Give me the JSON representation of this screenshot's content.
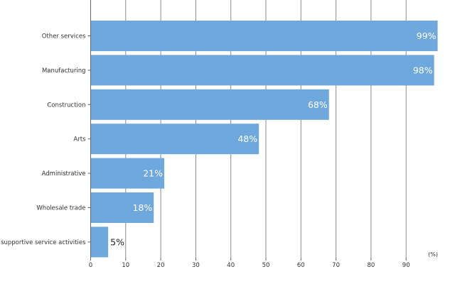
{
  "chart_data": {
    "type": "bar",
    "orientation": "horizontal",
    "categories": [
      "Other services",
      "Manufacturing",
      "Construction",
      "Arts",
      "Administrative",
      "Wholesale trade",
      "d supportive service activities"
    ],
    "values": [
      99,
      98,
      68,
      48,
      21,
      18,
      5
    ],
    "data_labels": [
      "99%",
      "98%",
      "68%",
      "48%",
      "21%",
      "18%",
      "5%"
    ],
    "xticks": [
      0,
      10,
      20,
      30,
      40,
      50,
      60,
      70,
      80,
      90
    ],
    "xlim": [
      0,
      99
    ],
    "unit_label": "(%)",
    "title": "",
    "xlabel": "",
    "ylabel": "",
    "grid": true,
    "bar_color": "#6fa8dc",
    "grid_color": "#8a8a8a",
    "label_inside_color": "#ffffff",
    "label_outside_color": "#222222"
  }
}
